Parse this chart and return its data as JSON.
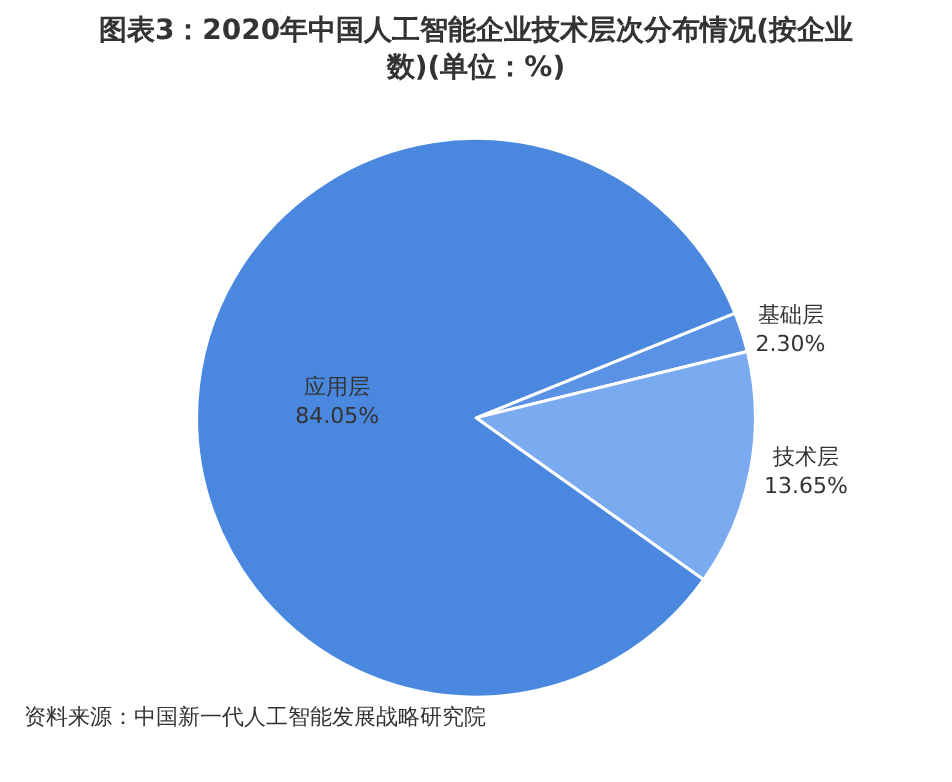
{
  "chart_data": {
    "type": "pie",
    "title": "图表3：2020年中国人工智能企业技术层次分布情况(按企业数)(单位：%)",
    "categories": [
      "基础层",
      "技术层",
      "应用层"
    ],
    "values": [
      2.3,
      13.65,
      84.05
    ],
    "value_labels": [
      "2.30%",
      "13.65%",
      "84.05%"
    ],
    "colors": [
      "#5a93e6",
      "#7aaaef",
      "#4a88e0"
    ],
    "legend": false,
    "annotations": [
      "资料来源：中国新一代人工智能发展战略研究院"
    ]
  }
}
